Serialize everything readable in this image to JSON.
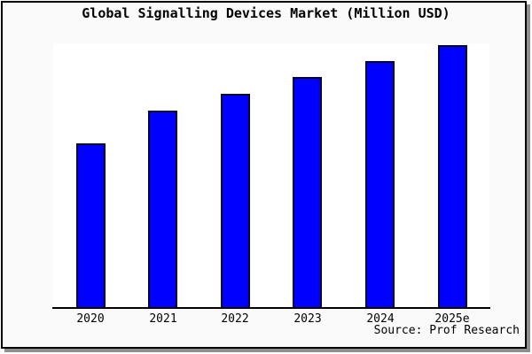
{
  "header": {
    "title": "Global Signalling Devices Market (Million USD)"
  },
  "footer": {
    "source_label": "Source: Prof Research"
  },
  "colors": {
    "bar_fill": "#0000ff",
    "bar_edge": "#000033",
    "plot_bg": "#ffffff",
    "page_bg": "#fafafa",
    "page_border": "#000000",
    "page_shadow": "#8f8f8f",
    "axis": "#000000",
    "text": "#000000"
  },
  "chart_data": {
    "type": "bar",
    "title": "Global Signalling Devices Market (Million USD)",
    "categories": [
      "2020",
      "2021",
      "2022",
      "2023",
      "2024",
      "2025e"
    ],
    "values": [
      187,
      224,
      243,
      262,
      280,
      298
    ],
    "xlabel": "",
    "ylabel": "",
    "ylim": [
      0,
      300
    ],
    "y_axis_visible": false,
    "grid": false,
    "legend": false,
    "value_note": "y-axis is unlabeled in source image; values are relative magnitudes estimated from bar heights (max scale 300)",
    "source": "Source: Prof Research"
  }
}
